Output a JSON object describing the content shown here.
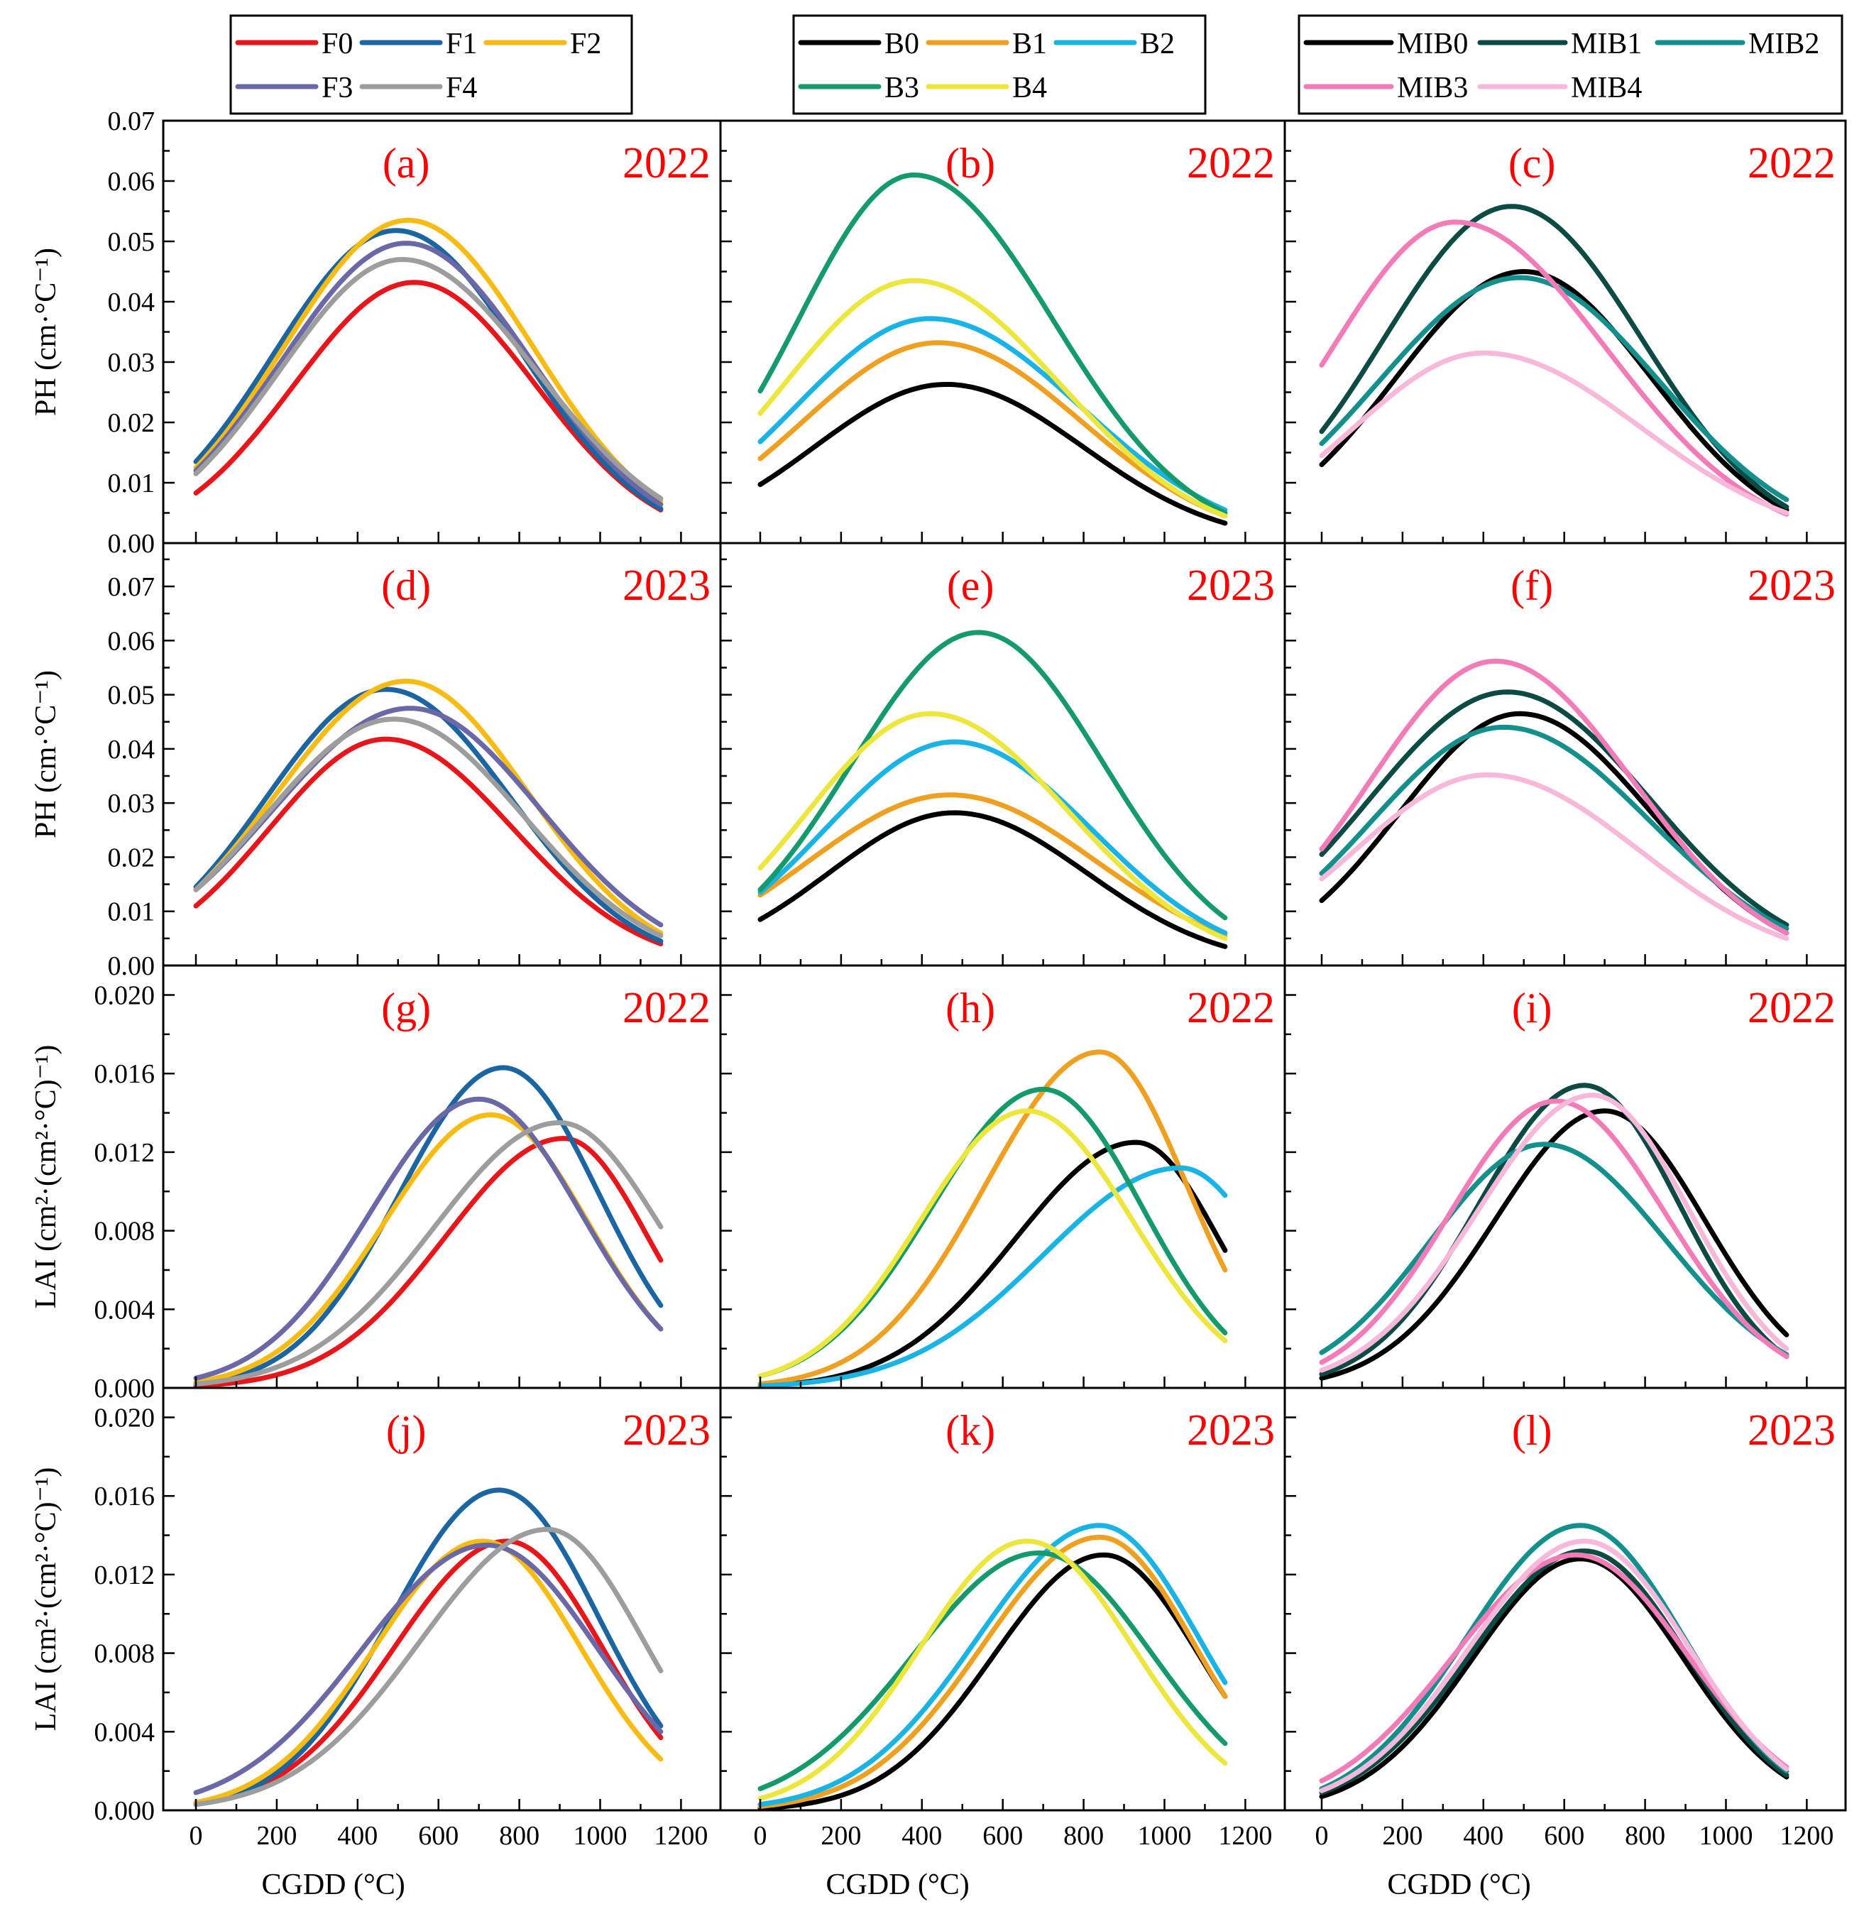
{
  "chart_data": {
    "type": "line",
    "x_label": "CGDD (°C)",
    "x_ticks": [
      0,
      200,
      400,
      600,
      800,
      1000,
      1200
    ],
    "xlim": [
      -80,
      1240
    ],
    "rows": [
      {
        "metric": "PH",
        "y_label": "PH (cm·°C⁻¹)",
        "ylim": [
          0,
          0.07
        ],
        "y_ticks": [
          "0.00",
          "0.01",
          "0.02",
          "0.03",
          "0.04",
          "0.05",
          "0.06",
          "0.07"
        ]
      },
      {
        "metric": "PH",
        "y_label": "PH (cm·°C⁻¹)",
        "ylim": [
          0,
          0.078
        ],
        "y_ticks": [
          "0.00",
          "0.01",
          "0.02",
          "0.03",
          "0.04",
          "0.05",
          "0.06",
          "0.07"
        ]
      },
      {
        "metric": "LAI",
        "y_label": "LAI (cm²·(cm²·°C)⁻¹)",
        "ylim": [
          0,
          0.0215
        ],
        "y_ticks": [
          "0.000",
          "0.004",
          "0.008",
          "0.012",
          "0.016",
          "0.020"
        ]
      },
      {
        "metric": "LAI",
        "y_label": "LAI (cm²·(cm²·°C)⁻¹)",
        "ylim": [
          0,
          0.0215
        ],
        "y_ticks": [
          "0.000",
          "0.004",
          "0.008",
          "0.012",
          "0.016",
          "0.020"
        ]
      }
    ],
    "legends": [
      [
        "F0",
        "F1",
        "F2",
        "F3",
        "F4"
      ],
      [
        "B0",
        "B1",
        "B2",
        "B3",
        "B4"
      ],
      [
        "MIB0",
        "MIB1",
        "MIB2",
        "MIB3",
        "MIB4"
      ]
    ],
    "colors": {
      "F0": "#e8161b",
      "F1": "#1a65a2",
      "F2": "#f7bb12",
      "F3": "#6b68a8",
      "F4": "#9d9d9d",
      "B0": "#000000",
      "B1": "#f0a020",
      "B2": "#1ab3e6",
      "B3": "#159a6c",
      "B4": "#ede63c",
      "MIB0": "#000000",
      "MIB1": "#0c4a44",
      "MIB2": "#138f8c",
      "MIB3": "#f27bb8",
      "MIB4": "#f7b8d9"
    },
    "panels": [
      {
        "id": "a",
        "label": "(a)",
        "year": "2022",
        "row": 0,
        "col": 0,
        "series": [
          {
            "name": "F0",
            "peak": 0.0432,
            "center": 540,
            "start": 0.0083,
            "end": 0.0055
          },
          {
            "name": "F1",
            "peak": 0.0518,
            "center": 495,
            "start": 0.0135,
            "end": 0.0057
          },
          {
            "name": "F2",
            "peak": 0.0535,
            "center": 525,
            "start": 0.0125,
            "end": 0.007
          },
          {
            "name": "F3",
            "peak": 0.0497,
            "center": 520,
            "start": 0.012,
            "end": 0.0064
          },
          {
            "name": "F4",
            "peak": 0.047,
            "center": 510,
            "start": 0.0115,
            "end": 0.0074
          }
        ]
      },
      {
        "id": "b",
        "label": "(b)",
        "year": "2022",
        "row": 0,
        "col": 1,
        "series": [
          {
            "name": "B0",
            "peak": 0.0263,
            "center": 460,
            "start": 0.0097,
            "end": 0.0033
          },
          {
            "name": "B1",
            "peak": 0.0332,
            "center": 440,
            "start": 0.014,
            "end": 0.0045
          },
          {
            "name": "B2",
            "peak": 0.0372,
            "center": 420,
            "start": 0.0168,
            "end": 0.0055
          },
          {
            "name": "B3",
            "peak": 0.061,
            "center": 380,
            "start": 0.0252,
            "end": 0.005
          },
          {
            "name": "B4",
            "peak": 0.0435,
            "center": 380,
            "start": 0.0215,
            "end": 0.0045
          }
        ]
      },
      {
        "id": "c",
        "label": "(c)",
        "year": "2022",
        "row": 0,
        "col": 2,
        "series": [
          {
            "name": "MIB0",
            "peak": 0.045,
            "center": 500,
            "start": 0.013,
            "end": 0.0055
          },
          {
            "name": "MIB1",
            "peak": 0.0558,
            "center": 470,
            "start": 0.0185,
            "end": 0.006
          },
          {
            "name": "MIB2",
            "peak": 0.044,
            "center": 490,
            "start": 0.0165,
            "end": 0.0072
          },
          {
            "name": "MIB3",
            "peak": 0.0532,
            "center": 330,
            "start": 0.0295,
            "end": 0.0048
          },
          {
            "name": "MIB4",
            "peak": 0.0315,
            "center": 400,
            "start": 0.0145,
            "end": 0.005
          }
        ]
      },
      {
        "id": "d",
        "label": "(d)",
        "year": "2023",
        "row": 1,
        "col": 0,
        "series": [
          {
            "name": "F0",
            "peak": 0.0418,
            "center": 470,
            "start": 0.011,
            "end": 0.004
          },
          {
            "name": "F1",
            "peak": 0.051,
            "center": 470,
            "start": 0.0145,
            "end": 0.0045
          },
          {
            "name": "F2",
            "peak": 0.0525,
            "center": 520,
            "start": 0.014,
            "end": 0.006
          },
          {
            "name": "F3",
            "peak": 0.0475,
            "center": 530,
            "start": 0.014,
            "end": 0.0075
          },
          {
            "name": "F4",
            "peak": 0.0455,
            "center": 490,
            "start": 0.014,
            "end": 0.0055
          }
        ]
      },
      {
        "id": "e",
        "label": "(e)",
        "year": "2023",
        "row": 1,
        "col": 1,
        "series": [
          {
            "name": "B0",
            "peak": 0.0282,
            "center": 480,
            "start": 0.0085,
            "end": 0.0035
          },
          {
            "name": "B1",
            "peak": 0.0315,
            "center": 470,
            "start": 0.013,
            "end": 0.0055
          },
          {
            "name": "B2",
            "peak": 0.0413,
            "center": 480,
            "start": 0.0135,
            "end": 0.006
          },
          {
            "name": "B3",
            "peak": 0.0615,
            "center": 540,
            "start": 0.014,
            "end": 0.0088
          },
          {
            "name": "B4",
            "peak": 0.0465,
            "center": 420,
            "start": 0.018,
            "end": 0.005
          }
        ]
      },
      {
        "id": "f",
        "label": "(f)",
        "year": "2023",
        "row": 1,
        "col": 2,
        "series": [
          {
            "name": "MIB0",
            "peak": 0.0465,
            "center": 490,
            "start": 0.012,
            "end": 0.006
          },
          {
            "name": "MIB1",
            "peak": 0.0505,
            "center": 460,
            "start": 0.0205,
            "end": 0.0075
          },
          {
            "name": "MIB2",
            "peak": 0.044,
            "center": 450,
            "start": 0.017,
            "end": 0.0068
          },
          {
            "name": "MIB3",
            "peak": 0.0562,
            "center": 430,
            "start": 0.0215,
            "end": 0.006
          },
          {
            "name": "MIB4",
            "peak": 0.0352,
            "center": 410,
            "start": 0.016,
            "end": 0.005
          }
        ]
      },
      {
        "id": "g",
        "label": "(g)",
        "year": "2022",
        "row": 2,
        "col": 0,
        "series": [
          {
            "name": "F0",
            "peak": 0.0127,
            "center": 910,
            "start": 0.0001,
            "end": 0.0065
          },
          {
            "name": "F1",
            "peak": 0.0163,
            "center": 760,
            "start": 0.0002,
            "end": 0.0042
          },
          {
            "name": "F2",
            "peak": 0.0139,
            "center": 730,
            "start": 0.0003,
            "end": 0.003
          },
          {
            "name": "F3",
            "peak": 0.0147,
            "center": 700,
            "start": 0.0005,
            "end": 0.003
          },
          {
            "name": "F4",
            "peak": 0.0135,
            "center": 900,
            "start": 0.0002,
            "end": 0.0082
          }
        ]
      },
      {
        "id": "h",
        "label": "(h)",
        "year": "2022",
        "row": 2,
        "col": 1,
        "series": [
          {
            "name": "B0",
            "peak": 0.0125,
            "center": 930,
            "start": 0.0001,
            "end": 0.007
          },
          {
            "name": "B1",
            "peak": 0.0171,
            "center": 840,
            "start": 0.0002,
            "end": 0.006
          },
          {
            "name": "B2",
            "peak": 0.0112,
            "center": 1040,
            "start": 0.0001,
            "end": 0.0098
          },
          {
            "name": "B3",
            "peak": 0.0152,
            "center": 700,
            "start": 0.0006,
            "end": 0.0028
          },
          {
            "name": "B4",
            "peak": 0.0141,
            "center": 660,
            "start": 0.0006,
            "end": 0.0024
          }
        ]
      },
      {
        "id": "i",
        "label": "(i)",
        "year": "2022",
        "row": 2,
        "col": 2,
        "series": [
          {
            "name": "MIB0",
            "peak": 0.0141,
            "center": 700,
            "start": 0.0005,
            "end": 0.0027
          },
          {
            "name": "MIB1",
            "peak": 0.0154,
            "center": 650,
            "start": 0.0007,
            "end": 0.0016
          },
          {
            "name": "MIB2",
            "peak": 0.0124,
            "center": 550,
            "start": 0.0018,
            "end": 0.0017
          },
          {
            "name": "MIB3",
            "peak": 0.0146,
            "center": 580,
            "start": 0.0013,
            "end": 0.0016
          },
          {
            "name": "MIB4",
            "peak": 0.0149,
            "center": 670,
            "start": 0.0009,
            "end": 0.002
          }
        ]
      },
      {
        "id": "j",
        "label": "(j)",
        "year": "2023",
        "row": 3,
        "col": 0,
        "series": [
          {
            "name": "F0",
            "peak": 0.0137,
            "center": 770,
            "start": 0.0003,
            "end": 0.0037
          },
          {
            "name": "F1",
            "peak": 0.0163,
            "center": 750,
            "start": 0.0003,
            "end": 0.0043
          },
          {
            "name": "F2",
            "peak": 0.0137,
            "center": 710,
            "start": 0.0004,
            "end": 0.0026
          },
          {
            "name": "F3",
            "peak": 0.0135,
            "center": 720,
            "start": 0.0009,
            "end": 0.004
          },
          {
            "name": "F4",
            "peak": 0.0143,
            "center": 870,
            "start": 0.0003,
            "end": 0.0071
          }
        ]
      },
      {
        "id": "k",
        "label": "(k)",
        "year": "2023",
        "row": 3,
        "col": 1,
        "series": [
          {
            "name": "B0",
            "peak": 0.013,
            "center": 850,
            "start": 0.0001,
            "end": 0.0058
          },
          {
            "name": "B1",
            "peak": 0.0139,
            "center": 840,
            "start": 0.0002,
            "end": 0.0058
          },
          {
            "name": "B2",
            "peak": 0.0145,
            "center": 840,
            "start": 0.0003,
            "end": 0.0065
          },
          {
            "name": "B3",
            "peak": 0.0131,
            "center": 690,
            "start": 0.0011,
            "end": 0.0034
          },
          {
            "name": "B4",
            "peak": 0.0137,
            "center": 660,
            "start": 0.0006,
            "end": 0.0024
          }
        ]
      },
      {
        "id": "l",
        "label": "(l)",
        "year": "2023",
        "row": 3,
        "col": 2,
        "series": [
          {
            "name": "MIB0",
            "peak": 0.0128,
            "center": 640,
            "start": 0.0007,
            "end": 0.0017
          },
          {
            "name": "MIB1",
            "peak": 0.0132,
            "center": 650,
            "start": 0.0009,
            "end": 0.0018
          },
          {
            "name": "MIB2",
            "peak": 0.0145,
            "center": 640,
            "start": 0.0011,
            "end": 0.002
          },
          {
            "name": "MIB3",
            "peak": 0.013,
            "center": 630,
            "start": 0.0015,
            "end": 0.0022
          },
          {
            "name": "MIB4",
            "peak": 0.0137,
            "center": 650,
            "start": 0.001,
            "end": 0.0021
          }
        ]
      }
    ]
  }
}
